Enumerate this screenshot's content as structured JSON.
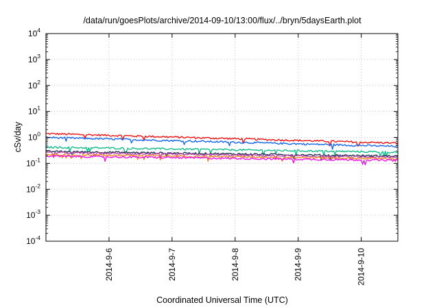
{
  "chart_data": {
    "type": "line",
    "title": "/data/run/goesPlots/archive/2014-09-10/13:00/flux/../bryn/5daysEarth.plot",
    "xlabel": "Coordinated Universal Time (UTC)",
    "ylabel": "cSv/day",
    "y_scale": "log",
    "ylim_exponents": [
      -4,
      4
    ],
    "y_tick_exponents": [
      -4,
      -3,
      -2,
      -1,
      0,
      1,
      2,
      3,
      4
    ],
    "x_tick_labels": [
      "2014-9-6",
      "2014-9-7",
      "2014-9-8",
      "2014-9-9",
      "2014-9-10"
    ],
    "xlim_days": [
      5.0,
      10.58
    ],
    "grid": true,
    "series": [
      {
        "color": "#ee1111",
        "start": 1.4,
        "end": 0.6
      },
      {
        "color": "#1166ee",
        "start": 1.0,
        "end": 0.45
      },
      {
        "color": "#11bb88",
        "start": 0.42,
        "end": 0.27
      },
      {
        "color": "#223355",
        "start": 0.29,
        "end": 0.19
      },
      {
        "color": "#bb44aa",
        "start": 0.26,
        "end": 0.17
      },
      {
        "color": "#ee8822",
        "start": 0.22,
        "end": 0.15
      },
      {
        "color": "#ee11ee",
        "start": 0.19,
        "end": 0.13
      }
    ]
  }
}
